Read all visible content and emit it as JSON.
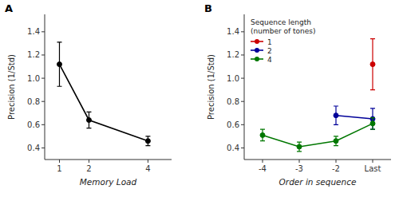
{
  "chart_data": [
    {
      "type": "line",
      "annotations": [
        "A"
      ],
      "x_label": "Memory Load",
      "y_label": "Precision (1/Std)",
      "x": [
        1,
        2,
        4
      ],
      "series": [
        {
          "color": "black",
          "marker": "circle",
          "values": [
            1.12,
            0.64,
            0.46
          ],
          "errors": [
            0.19,
            0.07,
            0.04
          ]
        }
      ],
      "xlim": [
        0.5,
        4.8
      ],
      "xticks": [
        1,
        2,
        4
      ],
      "ylim": [
        0.3,
        1.55
      ],
      "yticks": [
        0.4,
        0.6,
        0.8,
        {
          "value": 1.0,
          "label": "1.0"
        },
        1.2,
        1.4
      ],
      "grid": false
    },
    {
      "type": "line",
      "annotations": [
        "B"
      ],
      "x_label": "Order in sequence",
      "y_label": "Precision (1/Std)",
      "categories": [
        "-4",
        "-3",
        "-2",
        "Last"
      ],
      "series": [
        {
          "name": "1",
          "color": "#cc0000",
          "marker": "circle",
          "values": [
            null,
            null,
            null,
            1.12
          ],
          "errors": [
            null,
            null,
            null,
            0.22
          ]
        },
        {
          "name": "2",
          "color": "#000099",
          "marker": "circle",
          "values": [
            null,
            null,
            0.68,
            0.65
          ],
          "errors": [
            null,
            null,
            0.08,
            0.09
          ]
        },
        {
          "name": "4",
          "color": "#007700",
          "marker": "circle",
          "values": [
            0.51,
            0.41,
            0.46,
            0.61
          ],
          "errors": [
            0.05,
            0.04,
            0.04,
            0.05
          ]
        }
      ],
      "ylim": [
        0.3,
        1.55
      ],
      "yticks": [
        0.4,
        0.6,
        0.8,
        {
          "value": 1.0,
          "label": "1.0"
        },
        1.2,
        1.4
      ],
      "legend": "top-left",
      "legend_title": "Sequence length\n(number of tones)",
      "grid": false
    }
  ]
}
